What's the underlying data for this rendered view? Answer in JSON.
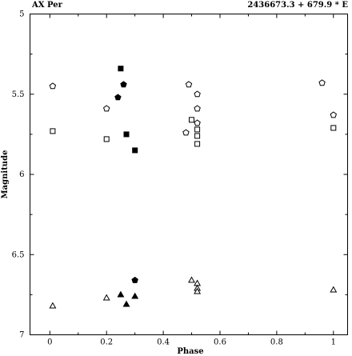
{
  "chart_data": {
    "type": "scatter",
    "title_left": "AX Per",
    "title_right": "2436673.3 + 679.9 * E",
    "xlabel": "Phase",
    "ylabel": "Magnitude",
    "xlim": [
      -0.07,
      1.05
    ],
    "ylim": [
      7.0,
      5.0
    ],
    "y_inverted": true,
    "x_ticks": [
      0,
      0.2,
      0.4,
      0.6,
      0.8,
      1
    ],
    "x_tick_labels": [
      "0",
      "0.2",
      "0.4",
      "0.6",
      "0.8",
      "1"
    ],
    "y_ticks": [
      5,
      5.5,
      6,
      6.5,
      7
    ],
    "y_tick_labels": [
      "5",
      "5.5",
      "6",
      "6.5",
      "7"
    ],
    "grid": false,
    "series": [
      {
        "marker": "pentagon",
        "filled": false,
        "points": [
          [
            0.01,
            5.45
          ],
          [
            0.2,
            5.59
          ],
          [
            0.49,
            5.44
          ],
          [
            0.52,
            5.5
          ],
          [
            0.52,
            5.59
          ],
          [
            0.52,
            5.68
          ],
          [
            0.48,
            5.74
          ],
          [
            0.96,
            5.43
          ],
          [
            1.0,
            5.63
          ]
        ]
      },
      {
        "marker": "pentagon",
        "filled": true,
        "points": [
          [
            0.26,
            5.44
          ],
          [
            0.24,
            5.52
          ],
          [
            0.3,
            6.66
          ]
        ]
      },
      {
        "marker": "square",
        "filled": false,
        "points": [
          [
            0.01,
            5.73
          ],
          [
            0.2,
            5.78
          ],
          [
            0.5,
            5.66
          ],
          [
            0.52,
            5.72
          ],
          [
            0.52,
            5.76
          ],
          [
            0.52,
            5.81
          ],
          [
            1.0,
            5.71
          ]
        ]
      },
      {
        "marker": "square",
        "filled": true,
        "points": [
          [
            0.25,
            5.34
          ],
          [
            0.27,
            5.75
          ],
          [
            0.3,
            5.85
          ]
        ]
      },
      {
        "marker": "triangle",
        "filled": false,
        "points": [
          [
            0.01,
            6.82
          ],
          [
            0.2,
            6.77
          ],
          [
            0.5,
            6.66
          ],
          [
            0.52,
            6.68
          ],
          [
            0.52,
            6.71
          ],
          [
            0.52,
            6.73
          ],
          [
            1.0,
            6.72
          ]
        ]
      },
      {
        "marker": "triangle",
        "filled": true,
        "points": [
          [
            0.25,
            6.75
          ],
          [
            0.27,
            6.81
          ],
          [
            0.3,
            6.76
          ]
        ]
      }
    ]
  }
}
